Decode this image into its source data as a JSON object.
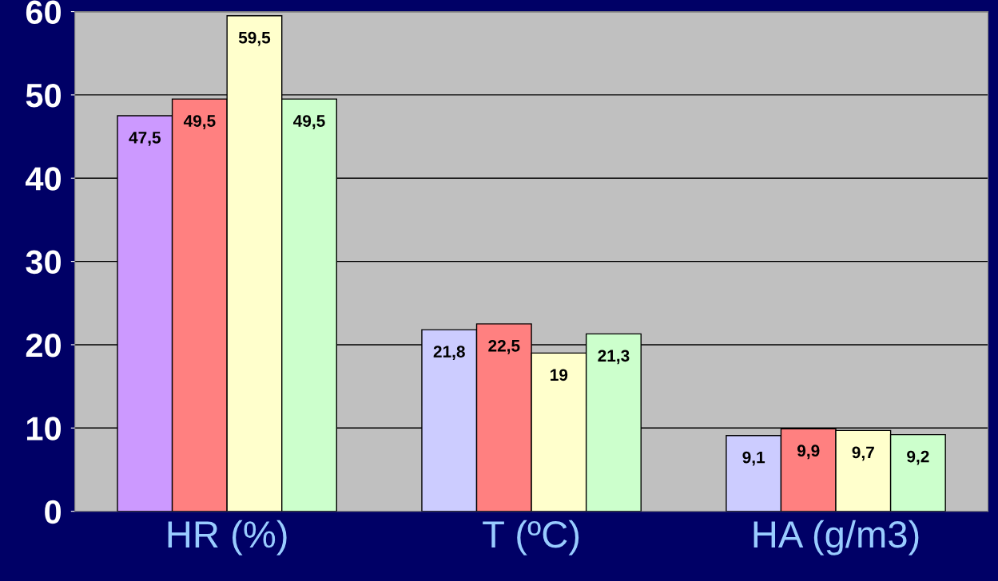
{
  "chart_data": {
    "type": "bar",
    "categories": [
      "HR (%)",
      "T (ºC)",
      "HA (g/m3)"
    ],
    "series": [
      {
        "colors": [
          "#cc99ff",
          "#ccccff",
          "#ccccff"
        ],
        "values": [
          47.5,
          21.8,
          9.1
        ],
        "value_labels": [
          "47,5",
          "21,8",
          "9,1"
        ]
      },
      {
        "color": "#ff8080",
        "values": [
          49.5,
          22.5,
          9.9
        ],
        "value_labels": [
          "49,5",
          "22,5",
          "9,9"
        ]
      },
      {
        "color": "#ffffcc",
        "values": [
          59.5,
          19,
          9.7
        ],
        "value_labels": [
          "59,5",
          "19",
          "9,7"
        ]
      },
      {
        "color": "#ccffcc",
        "values": [
          49.5,
          21.3,
          9.2
        ],
        "value_labels": [
          "49,5",
          "21,3",
          "9,2"
        ]
      }
    ],
    "ylim": [
      0,
      60
    ],
    "yticks": [
      0,
      10,
      20,
      30,
      40,
      50,
      60
    ],
    "grid": "y"
  }
}
